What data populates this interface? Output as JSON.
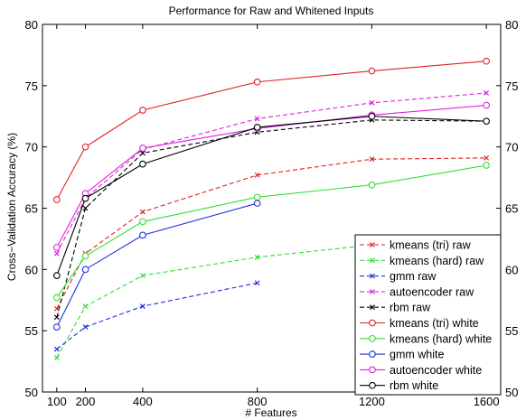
{
  "chart_data": {
    "type": "line",
    "title": "Performance for Raw and Whitened Inputs",
    "xlabel": "# Features",
    "ylabel": "Cross−Validation Accuracy (%)",
    "x_ticks": [
      100,
      200,
      400,
      800,
      1200,
      1600
    ],
    "y_ticks": [
      50,
      55,
      60,
      65,
      70,
      75,
      80
    ],
    "xlim": [
      50,
      1650
    ],
    "ylim": [
      50,
      80
    ],
    "right_y_ticks": true,
    "grid": false,
    "legend_position": "bottom-right",
    "series": [
      {
        "name": "kmeans (tri) raw",
        "color": "#e02020",
        "dash": true,
        "marker": "x",
        "x": [
          100,
          200,
          400,
          800,
          1200,
          1600
        ],
        "y": [
          56.8,
          61.3,
          64.7,
          67.7,
          69.0,
          69.1
        ]
      },
      {
        "name": "kmeans (hard) raw",
        "color": "#30e030",
        "dash": true,
        "marker": "x",
        "x": [
          100,
          200,
          400,
          800,
          1200
        ],
        "y": [
          52.8,
          57.0,
          59.5,
          61.0,
          62.0
        ]
      },
      {
        "name": "gmm raw",
        "color": "#2030e0",
        "dash": true,
        "marker": "x",
        "x": [
          100,
          200,
          400,
          800
        ],
        "y": [
          53.5,
          55.3,
          57.0,
          58.9
        ]
      },
      {
        "name": "autoencoder raw",
        "color": "#e020e0",
        "dash": true,
        "marker": "x",
        "x": [
          100,
          200,
          400,
          800,
          1200,
          1600
        ],
        "y": [
          61.3,
          65.8,
          69.8,
          72.3,
          73.6,
          74.4
        ]
      },
      {
        "name": "rbm raw",
        "color": "#000000",
        "dash": true,
        "marker": "x",
        "x": [
          100,
          200,
          400,
          800,
          1200,
          1600
        ],
        "y": [
          56.1,
          65.0,
          69.5,
          71.2,
          72.2,
          72.1
        ]
      },
      {
        "name": "kmeans (tri) white",
        "color": "#e02020",
        "dash": false,
        "marker": "o",
        "x": [
          100,
          200,
          400,
          800,
          1200,
          1600
        ],
        "y": [
          65.7,
          70.0,
          73.0,
          75.3,
          76.2,
          77.0
        ]
      },
      {
        "name": "kmeans (hard) white",
        "color": "#30e030",
        "dash": false,
        "marker": "o",
        "x": [
          100,
          200,
          400,
          800,
          1200,
          1600
        ],
        "y": [
          57.7,
          61.1,
          63.9,
          65.9,
          66.9,
          68.5
        ]
      },
      {
        "name": "gmm white",
        "color": "#2030e0",
        "dash": false,
        "marker": "o",
        "x": [
          100,
          200,
          400,
          800
        ],
        "y": [
          55.3,
          60.0,
          62.8,
          65.4
        ]
      },
      {
        "name": "autoencoder white",
        "color": "#e020e0",
        "dash": false,
        "marker": "o",
        "x": [
          100,
          200,
          400,
          800,
          1200,
          1600
        ],
        "y": [
          61.8,
          66.2,
          69.9,
          71.5,
          72.6,
          73.4
        ]
      },
      {
        "name": "rbm white",
        "color": "#000000",
        "dash": false,
        "marker": "o",
        "x": [
          100,
          200,
          400,
          800,
          1200,
          1600
        ],
        "y": [
          59.5,
          65.8,
          68.6,
          71.6,
          72.5,
          72.1
        ]
      }
    ]
  }
}
